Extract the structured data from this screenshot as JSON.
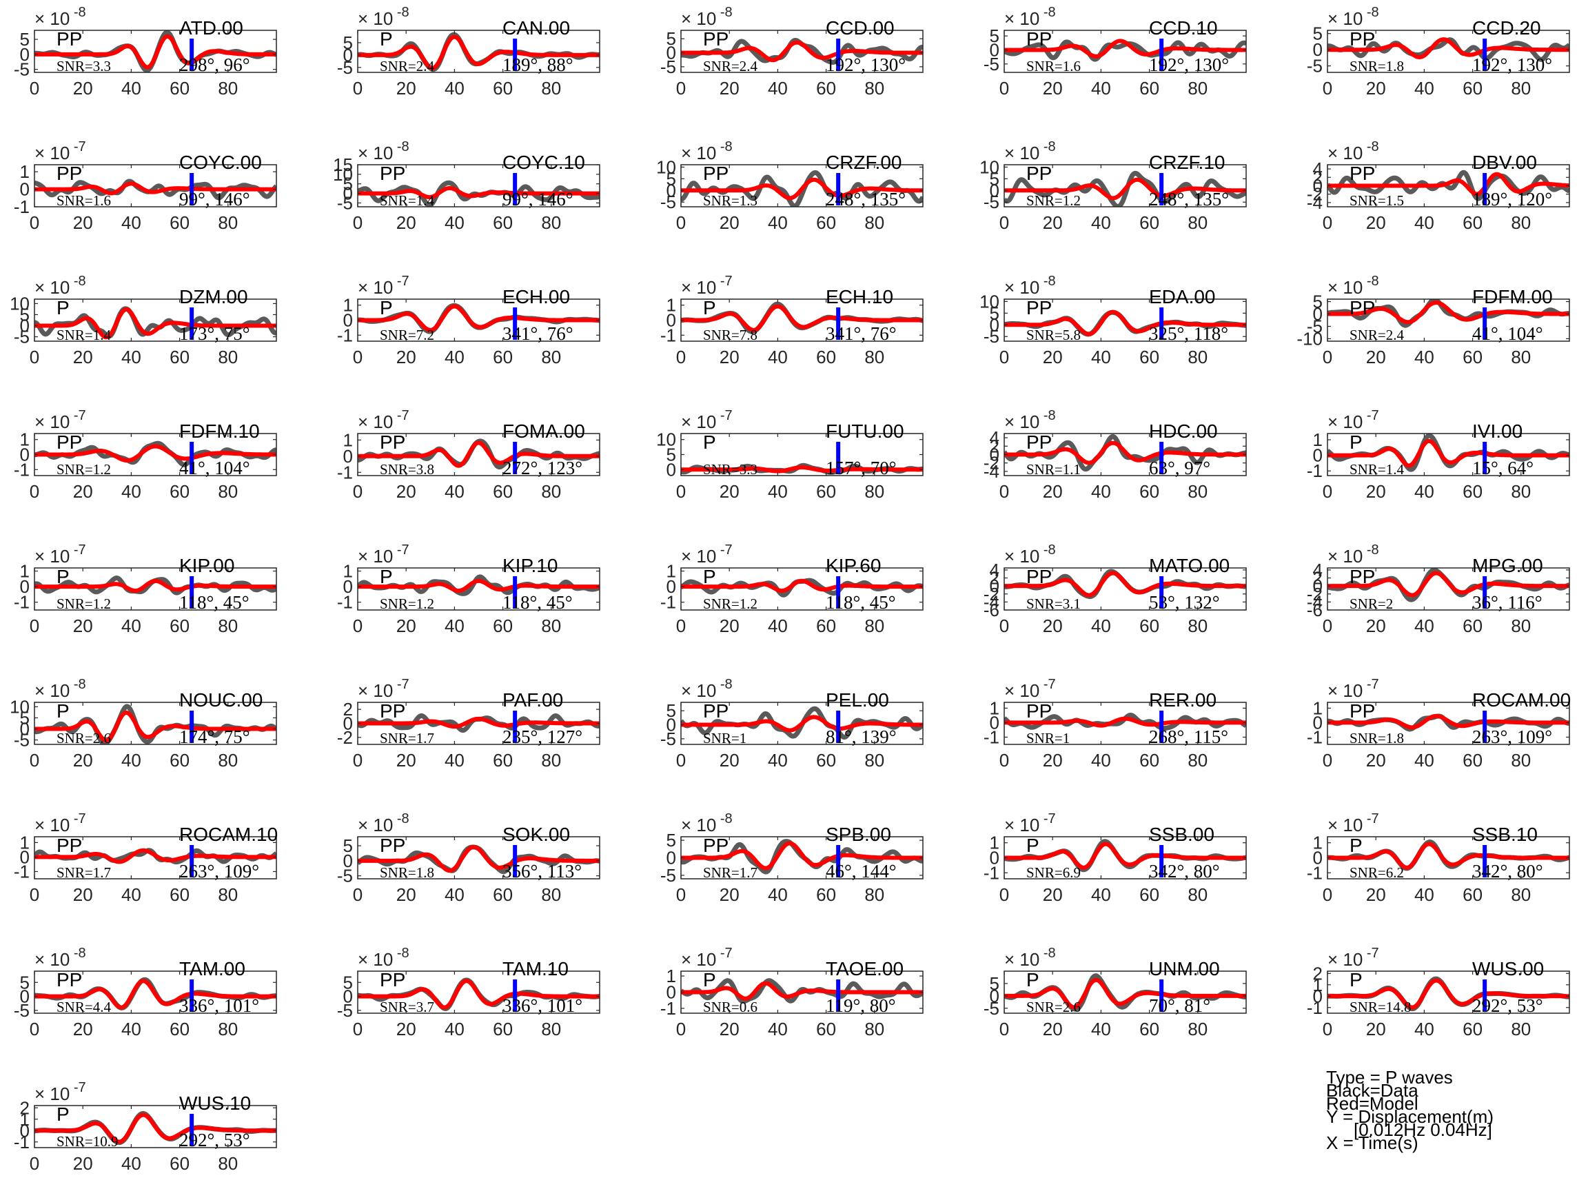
{
  "chart_data": {
    "type": "line",
    "xlim": [
      0,
      100
    ],
    "x_ticks": [
      0,
      20,
      40,
      60,
      80
    ],
    "pick_time": 65,
    "legend_notes": [
      "Type = P waves",
      "Black=Data",
      "Red=Model",
      "Y = Displacement(m)",
      "[0.012Hz 0.04Hz]",
      "X = Time(s)"
    ],
    "colors": {
      "data": "#5a5a5a",
      "model": "#ff0000",
      "pick": "#0000ff"
    },
    "panels": [
      {
        "station": "ATD.00",
        "phase": "PP",
        "snr": "SNR=3.3",
        "az_dist": "298°, 96°",
        "exponent": "-8",
        "ylim": [
          -6,
          8
        ],
        "yticks": [
          -5,
          0,
          5
        ],
        "amp": 6.5,
        "mc": 55,
        "mw": 5,
        "ns": 0.15,
        "seed": 11
      },
      {
        "station": "CAN.00",
        "phase": "P",
        "snr": "SNR=2.4",
        "az_dist": "189°, 88°",
        "exponent": "-8",
        "ylim": [
          -7,
          10
        ],
        "yticks": [
          -5,
          0,
          5
        ],
        "amp": 8,
        "mc": 40,
        "mw": 5.5,
        "ns": 0.12,
        "seed": 12
      },
      {
        "station": "CCD.00",
        "phase": "PP",
        "snr": "SNR=2.4",
        "az_dist": "192°, 130°",
        "exponent": "-8",
        "ylim": [
          -7,
          8
        ],
        "yticks": [
          -5,
          0,
          5
        ],
        "amp": 4,
        "mc": 48,
        "mw": 6,
        "ns": 0.7,
        "seed": 13
      },
      {
        "station": "CCD.10",
        "phase": "PP",
        "snr": "SNR=1.6",
        "az_dist": "192°, 130°",
        "exponent": "-8",
        "ylim": [
          -8,
          7
        ],
        "yticks": [
          -5,
          0,
          5
        ],
        "amp": 3.5,
        "mc": 48,
        "mw": 6,
        "ns": 0.8,
        "seed": 14
      },
      {
        "station": "CCD.20",
        "phase": "PP",
        "snr": "SNR=1.8",
        "az_dist": "192°, 130°",
        "exponent": "-8",
        "ylim": [
          -7,
          6
        ],
        "yticks": [
          -5,
          0,
          5
        ],
        "amp": 3.5,
        "mc": 48,
        "mw": 6,
        "ns": 0.8,
        "seed": 15
      },
      {
        "station": "COYC.00",
        "phase": "PP",
        "snr": "SNR=1.6",
        "az_dist": "99°, 146°",
        "exponent": "-7",
        "ylim": [
          -1,
          1.4
        ],
        "yticks": [
          -1,
          0,
          1
        ],
        "amp": 0.35,
        "mc": 40,
        "mw": 5,
        "ns": 1.2,
        "seed": 21
      },
      {
        "station": "COYC.10",
        "phase": "PP",
        "snr": "SNR=1.4",
        "az_dist": "99°, 146°",
        "exponent": "-8",
        "ylim": [
          -7,
          15
        ],
        "yticks": [
          -5,
          0,
          5,
          10,
          15
        ],
        "amp": 3,
        "mc": 38,
        "mw": 5,
        "ns": 1.3,
        "seed": 22
      },
      {
        "station": "CRZF.00",
        "phase": "PP",
        "snr": "SNR=1.3",
        "az_dist": "248°, 135°",
        "exponent": "-8",
        "ylim": [
          -7,
          11
        ],
        "yticks": [
          -5,
          0,
          5,
          10
        ],
        "amp": 5,
        "mc": 55,
        "mw": 6,
        "ns": 0.9,
        "seed": 23
      },
      {
        "station": "CRZF.10",
        "phase": "PP",
        "snr": "SNR=1.2",
        "az_dist": "248°, 135°",
        "exponent": "-8",
        "ylim": [
          -7,
          11
        ],
        "yticks": [
          -5,
          0,
          5,
          10
        ],
        "amp": 5,
        "mc": 55,
        "mw": 6,
        "ns": 0.9,
        "seed": 24
      },
      {
        "station": "DBV.00",
        "phase": "PP",
        "snr": "SNR=1.5",
        "az_dist": "189°, 120°",
        "exponent": "-8",
        "ylim": [
          -5,
          5
        ],
        "yticks": [
          -4,
          -2,
          0,
          2,
          4
        ],
        "amp": 3,
        "mc": 70,
        "mw": 5,
        "ns": 0.8,
        "seed": 25
      },
      {
        "station": "DZM.00",
        "phase": "P",
        "snr": "SNR=1.4",
        "az_dist": "173°, 75°",
        "exponent": "-8",
        "ylim": [
          -7,
          12
        ],
        "yticks": [
          -5,
          0,
          5,
          10
        ],
        "amp": 8,
        "mc": 38,
        "mw": 5,
        "ns": 0.5,
        "seed": 31
      },
      {
        "station": "ECH.00",
        "phase": "P",
        "snr": "SNR=7.2",
        "az_dist": "341°, 76°",
        "exponent": "-7",
        "ylim": [
          -1.4,
          1.4
        ],
        "yticks": [
          -1,
          0,
          1
        ],
        "amp": 1.0,
        "mc": 40,
        "mw": 6,
        "ns": 0.1,
        "seed": 32
      },
      {
        "station": "ECH.10",
        "phase": "P",
        "snr": "SNR=7.8",
        "az_dist": "341°, 76°",
        "exponent": "-7",
        "ylim": [
          -1.4,
          1.4
        ],
        "yticks": [
          -1,
          0,
          1
        ],
        "amp": 1.0,
        "mc": 40,
        "mw": 6,
        "ns": 0.1,
        "seed": 33
      },
      {
        "station": "EDA.00",
        "phase": "PP",
        "snr": "SNR=5.8",
        "az_dist": "325°, 118°",
        "exponent": "-8",
        "ylim": [
          -7,
          11
        ],
        "yticks": [
          -5,
          0,
          5,
          10
        ],
        "amp": 6,
        "mc": 45,
        "mw": 6,
        "ns": 0.15,
        "seed": 34
      },
      {
        "station": "FDFM.00",
        "phase": "PP",
        "snr": "SNR=2.4",
        "az_dist": "41°, 104°",
        "exponent": "-8",
        "ylim": [
          -11,
          6
        ],
        "yticks": [
          -10,
          -5,
          0,
          5
        ],
        "amp": 5,
        "mc": 45,
        "mw": 7,
        "ns": 0.4,
        "seed": 35
      },
      {
        "station": "FDFM.10",
        "phase": "PP",
        "snr": "SNR=1.2",
        "az_dist": "41°, 104°",
        "exponent": "-7",
        "ylim": [
          -1.4,
          1.4
        ],
        "yticks": [
          -1,
          0,
          1
        ],
        "amp": 0.6,
        "mc": 50,
        "mw": 7,
        "ns": 0.6,
        "seed": 41
      },
      {
        "station": "FOMA.00",
        "phase": "PP",
        "snr": "SNR=3.8",
        "az_dist": "272°, 123°",
        "exponent": "-7",
        "ylim": [
          -1.2,
          1.4
        ],
        "yticks": [
          -1,
          0,
          1
        ],
        "amp": 0.9,
        "mc": 50,
        "mw": 5,
        "ns": 0.3,
        "seed": 42
      },
      {
        "station": "FUTU.00",
        "phase": "P",
        "snr": "SNR=3.3",
        "az_dist": "157°, 70°",
        "exponent": "-7",
        "ylim": [
          -2,
          12
        ],
        "yticks": [
          0,
          5,
          10
        ],
        "amp": 0.8,
        "mc": 50,
        "mw": 6,
        "ns": 1.2,
        "seed": 43
      },
      {
        "station": "HDC.00",
        "phase": "PP",
        "snr": "SNR=1.1",
        "az_dist": "63°, 97°",
        "exponent": "-8",
        "ylim": [
          -5,
          5
        ],
        "yticks": [
          -4,
          -2,
          0,
          2,
          4
        ],
        "amp": 3,
        "mc": 45,
        "mw": 6,
        "ns": 0.6,
        "seed": 44
      },
      {
        "station": "IVI.00",
        "phase": "P",
        "snr": "SNR=1.4",
        "az_dist": "15°, 64°",
        "exponent": "-7",
        "ylim": [
          -1.3,
          1.4
        ],
        "yticks": [
          -1,
          0,
          1
        ],
        "amp": 1.0,
        "mc": 42,
        "mw": 5,
        "ns": 0.3,
        "seed": 45
      },
      {
        "station": "KIP.00",
        "phase": "P",
        "snr": "SNR=1.2",
        "az_dist": "118°, 45°",
        "exponent": "-7",
        "ylim": [
          -1.5,
          1.2
        ],
        "yticks": [
          -1,
          0,
          1
        ],
        "amp": 0.4,
        "mc": 50,
        "mw": 5,
        "ns": 0.9,
        "seed": 51
      },
      {
        "station": "KIP.10",
        "phase": "P",
        "snr": "SNR=1.2",
        "az_dist": "118°, 45°",
        "exponent": "-7",
        "ylim": [
          -1.5,
          1.2
        ],
        "yticks": [
          -1,
          0,
          1
        ],
        "amp": 0.4,
        "mc": 50,
        "mw": 5,
        "ns": 0.9,
        "seed": 52
      },
      {
        "station": "KIP.60",
        "phase": "P",
        "snr": "SNR=1.2",
        "az_dist": "118°, 45°",
        "exponent": "-7",
        "ylim": [
          -1.5,
          1.2
        ],
        "yticks": [
          -1,
          0,
          1
        ],
        "amp": 0.4,
        "mc": 50,
        "mw": 5,
        "ns": 0.9,
        "seed": 53
      },
      {
        "station": "MATO.00",
        "phase": "PP",
        "snr": "SNR=3.1",
        "az_dist": "53°, 132°",
        "exponent": "-8",
        "ylim": [
          -6,
          4.5
        ],
        "yticks": [
          -6,
          -4,
          -2,
          0,
          2,
          4
        ],
        "amp": 3.5,
        "mc": 45,
        "mw": 6,
        "ns": 0.2,
        "seed": 54
      },
      {
        "station": "MPG.00",
        "phase": "PP",
        "snr": "SNR=2",
        "az_dist": "36°, 116°",
        "exponent": "-8",
        "ylim": [
          -6,
          4.5
        ],
        "yticks": [
          -6,
          -4,
          -2,
          0,
          2,
          4
        ],
        "amp": 3.5,
        "mc": 45,
        "mw": 6,
        "ns": 0.3,
        "seed": 55
      },
      {
        "station": "NOUC.00",
        "phase": "P",
        "snr": "SNR=2.6",
        "az_dist": "174°, 75°",
        "exponent": "-8",
        "ylim": [
          -7,
          12
        ],
        "yticks": [
          -5,
          0,
          5,
          10
        ],
        "amp": 8,
        "mc": 38,
        "mw": 5,
        "ns": 0.3,
        "seed": 61
      },
      {
        "station": "PAF.00",
        "phase": "PP",
        "snr": "SNR=1.7",
        "az_dist": "235°, 127°",
        "exponent": "-7",
        "ylim": [
          -3,
          3
        ],
        "yticks": [
          -2,
          0,
          2
        ],
        "amp": 0.7,
        "mc": 50,
        "mw": 6,
        "ns": 1.4,
        "seed": 62
      },
      {
        "station": "PEL.00",
        "phase": "PP",
        "snr": "SNR=1",
        "az_dist": "81°, 139°",
        "exponent": "-8",
        "ylim": [
          -7,
          8
        ],
        "yticks": [
          -5,
          0,
          5
        ],
        "amp": 3,
        "mc": 55,
        "mw": 6,
        "ns": 1.0,
        "seed": 63
      },
      {
        "station": "RER.00",
        "phase": "PP",
        "snr": "SNR=1",
        "az_dist": "268°, 115°",
        "exponent": "-7",
        "ylim": [
          -1.5,
          1.4
        ],
        "yticks": [
          -1,
          0,
          1
        ],
        "amp": 0.3,
        "mc": 50,
        "mw": 6,
        "ns": 1.4,
        "seed": 64
      },
      {
        "station": "ROCAM.00",
        "phase": "PP",
        "snr": "SNR=1.8",
        "az_dist": "263°, 109°",
        "exponent": "-7",
        "ylim": [
          -1.5,
          1.4
        ],
        "yticks": [
          -1,
          0,
          1
        ],
        "amp": 0.5,
        "mc": 45,
        "mw": 6,
        "ns": 0.6,
        "seed": 65
      },
      {
        "station": "ROCAM.10",
        "phase": "PP",
        "snr": "SNR=1.7",
        "az_dist": "263°, 109°",
        "exponent": "-7",
        "ylim": [
          -1.5,
          1.4
        ],
        "yticks": [
          -1,
          0,
          1
        ],
        "amp": 0.5,
        "mc": 45,
        "mw": 6,
        "ns": 0.7,
        "seed": 71
      },
      {
        "station": "SOK.00",
        "phase": "PP",
        "snr": "SNR=1.8",
        "az_dist": "356°, 113°",
        "exponent": "-8",
        "ylim": [
          -6,
          8
        ],
        "yticks": [
          -5,
          0,
          5
        ],
        "amp": 5,
        "mc": 48,
        "mw": 6,
        "ns": 0.3,
        "seed": 72
      },
      {
        "station": "SPB.00",
        "phase": "PP",
        "snr": "SNR=1.7",
        "az_dist": "46°, 144°",
        "exponent": "-8",
        "ylim": [
          -6,
          6
        ],
        "yticks": [
          -5,
          0,
          5
        ],
        "amp": 4.5,
        "mc": 45,
        "mw": 6,
        "ns": 0.4,
        "seed": 73
      },
      {
        "station": "SSB.00",
        "phase": "P",
        "snr": "SNR=6.9",
        "az_dist": "342°, 80°",
        "exponent": "-7",
        "ylim": [
          -1.4,
          1.4
        ],
        "yticks": [
          -1,
          0,
          1
        ],
        "amp": 1.0,
        "mc": 42,
        "mw": 5.5,
        "ns": 0.12,
        "seed": 74
      },
      {
        "station": "SSB.10",
        "phase": "P",
        "snr": "SNR=6.2",
        "az_dist": "342°, 80°",
        "exponent": "-7",
        "ylim": [
          -1.4,
          1.4
        ],
        "yticks": [
          -1,
          0,
          1
        ],
        "amp": 1.0,
        "mc": 42,
        "mw": 5.5,
        "ns": 0.12,
        "seed": 75
      },
      {
        "station": "TAM.00",
        "phase": "PP",
        "snr": "SNR=4.4",
        "az_dist": "336°, 101°",
        "exponent": "-8",
        "ylim": [
          -6,
          9
        ],
        "yticks": [
          -5,
          0,
          5
        ],
        "amp": 6,
        "mc": 45,
        "mw": 5.5,
        "ns": 0.15,
        "seed": 81
      },
      {
        "station": "TAM.10",
        "phase": "PP",
        "snr": "SNR=3.7",
        "az_dist": "336°, 101°",
        "exponent": "-8",
        "ylim": [
          -6,
          9
        ],
        "yticks": [
          -5,
          0,
          5
        ],
        "amp": 6,
        "mc": 45,
        "mw": 5.5,
        "ns": 0.15,
        "seed": 82
      },
      {
        "station": "TAOE.00",
        "phase": "P",
        "snr": "SNR=0.6",
        "az_dist": "119°, 80°",
        "exponent": "-7",
        "ylim": [
          -1.3,
          1.3
        ],
        "yticks": [
          -1,
          0,
          1
        ],
        "amp": 0.6,
        "mc": 35,
        "mw": 5,
        "ns": 0.8,
        "seed": 83
      },
      {
        "station": "UNM.00",
        "phase": "P",
        "snr": "SNR=2.6",
        "az_dist": "70°, 81°",
        "exponent": "-8",
        "ylim": [
          -7,
          10
        ],
        "yticks": [
          -5,
          0,
          5
        ],
        "amp": 7,
        "mc": 38,
        "mw": 5.5,
        "ns": 0.2,
        "seed": 84
      },
      {
        "station": "WUS.00",
        "phase": "P",
        "snr": "SNR=14.8",
        "az_dist": "292°, 53°",
        "exponent": "-7",
        "ylim": [
          -1.5,
          2.2
        ],
        "yticks": [
          -1,
          0,
          1,
          2
        ],
        "amp": 1.5,
        "mc": 45,
        "mw": 6,
        "ns": 0.05,
        "seed": 85
      },
      {
        "station": "WUS.10",
        "phase": "P",
        "snr": "SNR=10.9",
        "az_dist": "292°, 53°",
        "exponent": "-7",
        "ylim": [
          -1.5,
          2.2
        ],
        "yticks": [
          -1,
          0,
          1,
          2
        ],
        "amp": 1.5,
        "mc": 45,
        "mw": 6,
        "ns": 0.05,
        "seed": 91
      }
    ]
  }
}
